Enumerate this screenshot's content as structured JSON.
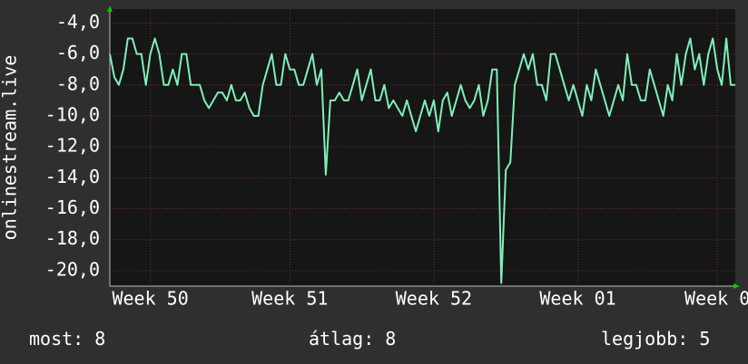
{
  "chart_data": {
    "type": "line",
    "ylabel": "onlinestream.live",
    "color": "#7ff0b8",
    "grid": true,
    "ylim": [
      -21,
      -3.1
    ],
    "yticks": [
      {
        "value": -4,
        "label": "-4,0"
      },
      {
        "value": -6,
        "label": "-6,0"
      },
      {
        "value": -8,
        "label": "-8,0"
      },
      {
        "value": -10,
        "label": "-10,0"
      },
      {
        "value": -12,
        "label": "-12,0"
      },
      {
        "value": -14,
        "label": "-14,0"
      },
      {
        "value": -16,
        "label": "-16,0"
      },
      {
        "value": -18,
        "label": "-18,0"
      },
      {
        "value": -20,
        "label": "-20,0"
      }
    ],
    "xlim": [
      0,
      139
    ],
    "xticks": [
      {
        "value": 9,
        "label": "Week 50"
      },
      {
        "value": 40,
        "label": "Week 51"
      },
      {
        "value": 72,
        "label": "Week 52"
      },
      {
        "value": 104,
        "label": "Week 01"
      },
      {
        "value": 135,
        "label": "Week 0"
      }
    ],
    "values": [
      -6,
      -7.5,
      -8,
      -7,
      -5,
      -5,
      -6,
      -6,
      -8,
      -6,
      -5,
      -6,
      -8,
      -8,
      -7,
      -8,
      -6,
      -6,
      -8,
      -8,
      -8,
      -9,
      -9.5,
      -9,
      -8.5,
      -8.5,
      -9,
      -8,
      -9,
      -9,
      -8.5,
      -9.5,
      -10,
      -10,
      -8,
      -7,
      -6,
      -8,
      -8,
      -6,
      -7,
      -7,
      -8,
      -8,
      -7,
      -6,
      -8,
      -7,
      -13.8,
      -9,
      -9,
      -8.5,
      -9,
      -9,
      -8,
      -7,
      -9,
      -8,
      -7,
      -9,
      -9,
      -8,
      -9.5,
      -9,
      -9.5,
      -10,
      -9,
      -10,
      -11,
      -10,
      -9,
      -10,
      -9,
      -11,
      -9,
      -8.5,
      -10,
      -9,
      -8,
      -9,
      -9.5,
      -9,
      -8,
      -10,
      -9,
      -7,
      -7,
      -20.8,
      -13.5,
      -13,
      -8,
      -7,
      -6,
      -7,
      -6,
      -8,
      -8,
      -9,
      -6,
      -6,
      -7,
      -8,
      -9,
      -8,
      -9,
      -10,
      -8,
      -9,
      -7,
      -8,
      -9,
      -10,
      -9,
      -8,
      -9,
      -6,
      -8,
      -8,
      -9,
      -9,
      -7,
      -8,
      -9,
      -10,
      -8,
      -9,
      -6,
      -8,
      -6,
      -5,
      -7,
      -6,
      -8,
      -6,
      -5,
      -7,
      -8,
      -5,
      -8,
      -8
    ]
  },
  "legend": {
    "items": [
      {
        "label": "most:",
        "value": 8
      },
      {
        "label": "átlag:",
        "value": 8
      },
      {
        "label": "legjobb:",
        "value": 5
      }
    ]
  }
}
